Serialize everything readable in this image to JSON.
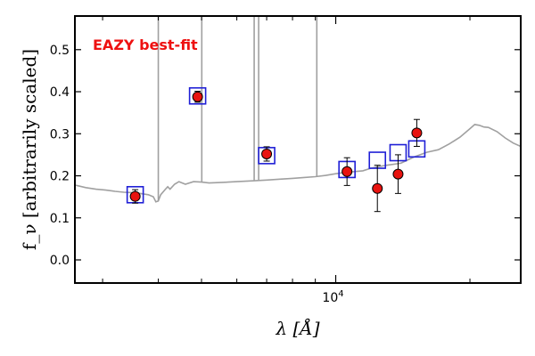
{
  "chart_data": {
    "type": "scatter",
    "annotation": "EAZY best-fit",
    "xlabel": "λ [Å]",
    "ylabel": "f_ν [arbitrarily scaled]",
    "xscale": "log",
    "xlim": [
      2600,
      26000
    ],
    "ylim": [
      -0.055,
      0.58
    ],
    "yticks": [
      0.0,
      0.1,
      0.2,
      0.3,
      0.4,
      0.5
    ],
    "ytick_labels": [
      "0.0",
      "0.1",
      "0.2",
      "0.3",
      "0.4",
      "0.5"
    ],
    "xtick_major": [
      {
        "value": 10000,
        "base": "10",
        "exp": "4"
      }
    ],
    "xtick_minor": [
      3000,
      4000,
      5000,
      6000,
      7000,
      8000,
      9000,
      20000
    ],
    "grid": false,
    "colors": {
      "observed": "#e8130f",
      "model": "#1f1fd6",
      "template": "#a0a0a0",
      "annotation": "#ee1111"
    },
    "series": [
      {
        "name": "Observed photometry",
        "marker": "circle",
        "points": [
          {
            "x": 3550,
            "y": 0.151,
            "err": 0.016
          },
          {
            "x": 4900,
            "y": 0.388,
            "err": 0.013
          },
          {
            "x": 7000,
            "y": 0.252,
            "err": 0.017
          },
          {
            "x": 10600,
            "y": 0.21,
            "err": 0.033
          },
          {
            "x": 12400,
            "y": 0.17,
            "err": 0.055
          },
          {
            "x": 13800,
            "y": 0.204,
            "err": 0.046
          },
          {
            "x": 15200,
            "y": 0.302,
            "err": 0.032
          }
        ]
      },
      {
        "name": "Model photometry",
        "marker": "square",
        "points": [
          {
            "x": 3550,
            "y": 0.155
          },
          {
            "x": 4900,
            "y": 0.39
          },
          {
            "x": 7000,
            "y": 0.248
          },
          {
            "x": 10600,
            "y": 0.215
          },
          {
            "x": 12400,
            "y": 0.237
          },
          {
            "x": 13800,
            "y": 0.255
          },
          {
            "x": 15200,
            "y": 0.264
          }
        ]
      },
      {
        "name": "Best-fit template",
        "marker": "line",
        "points": [
          {
            "x": 2600,
            "y": 0.178
          },
          {
            "x": 2750,
            "y": 0.172
          },
          {
            "x": 2900,
            "y": 0.168
          },
          {
            "x": 3050,
            "y": 0.166
          },
          {
            "x": 3200,
            "y": 0.163
          },
          {
            "x": 3350,
            "y": 0.161
          },
          {
            "x": 3500,
            "y": 0.16
          },
          {
            "x": 3650,
            "y": 0.158
          },
          {
            "x": 3800,
            "y": 0.155
          },
          {
            "x": 3900,
            "y": 0.15
          },
          {
            "x": 3950,
            "y": 0.138
          },
          {
            "x": 4000,
            "y": 0.14
          },
          {
            "x": 4050,
            "y": 0.155
          },
          {
            "x": 4150,
            "y": 0.168
          },
          {
            "x": 4200,
            "y": 0.174
          },
          {
            "x": 4250,
            "y": 0.168
          },
          {
            "x": 4350,
            "y": 0.18
          },
          {
            "x": 4450,
            "y": 0.186
          },
          {
            "x": 4600,
            "y": 0.18
          },
          {
            "x": 4800,
            "y": 0.186
          },
          {
            "x": 5000,
            "y": 0.185
          },
          {
            "x": 5200,
            "y": 0.183
          },
          {
            "x": 5500,
            "y": 0.184
          },
          {
            "x": 6000,
            "y": 0.186
          },
          {
            "x": 6500,
            "y": 0.188
          },
          {
            "x": 7000,
            "y": 0.19
          },
          {
            "x": 7500,
            "y": 0.192
          },
          {
            "x": 8000,
            "y": 0.194
          },
          {
            "x": 8500,
            "y": 0.196
          },
          {
            "x": 9000,
            "y": 0.198
          },
          {
            "x": 9500,
            "y": 0.201
          },
          {
            "x": 10000,
            "y": 0.205
          },
          {
            "x": 10500,
            "y": 0.208
          },
          {
            "x": 11000,
            "y": 0.21
          },
          {
            "x": 11500,
            "y": 0.212
          },
          {
            "x": 12000,
            "y": 0.218
          },
          {
            "x": 12500,
            "y": 0.222
          },
          {
            "x": 13000,
            "y": 0.225
          },
          {
            "x": 14000,
            "y": 0.23
          },
          {
            "x": 15000,
            "y": 0.245
          },
          {
            "x": 16000,
            "y": 0.256
          },
          {
            "x": 17000,
            "y": 0.262
          },
          {
            "x": 18000,
            "y": 0.276
          },
          {
            "x": 19000,
            "y": 0.292
          },
          {
            "x": 20000,
            "y": 0.312
          },
          {
            "x": 20500,
            "y": 0.322
          },
          {
            "x": 21000,
            "y": 0.32
          },
          {
            "x": 21500,
            "y": 0.316
          },
          {
            "x": 22000,
            "y": 0.315
          },
          {
            "x": 23000,
            "y": 0.305
          },
          {
            "x": 24000,
            "y": 0.29
          },
          {
            "x": 25000,
            "y": 0.278
          },
          {
            "x": 26000,
            "y": 0.27
          }
        ]
      }
    ],
    "emission_lines": [
      {
        "x": 4000,
        "y": 0.58
      },
      {
        "x": 5007,
        "y": 0.58
      },
      {
        "x": 6563,
        "y": 0.58
      },
      {
        "x": 6716,
        "y": 0.58
      },
      {
        "x": 9069,
        "y": 0.58
      }
    ]
  }
}
